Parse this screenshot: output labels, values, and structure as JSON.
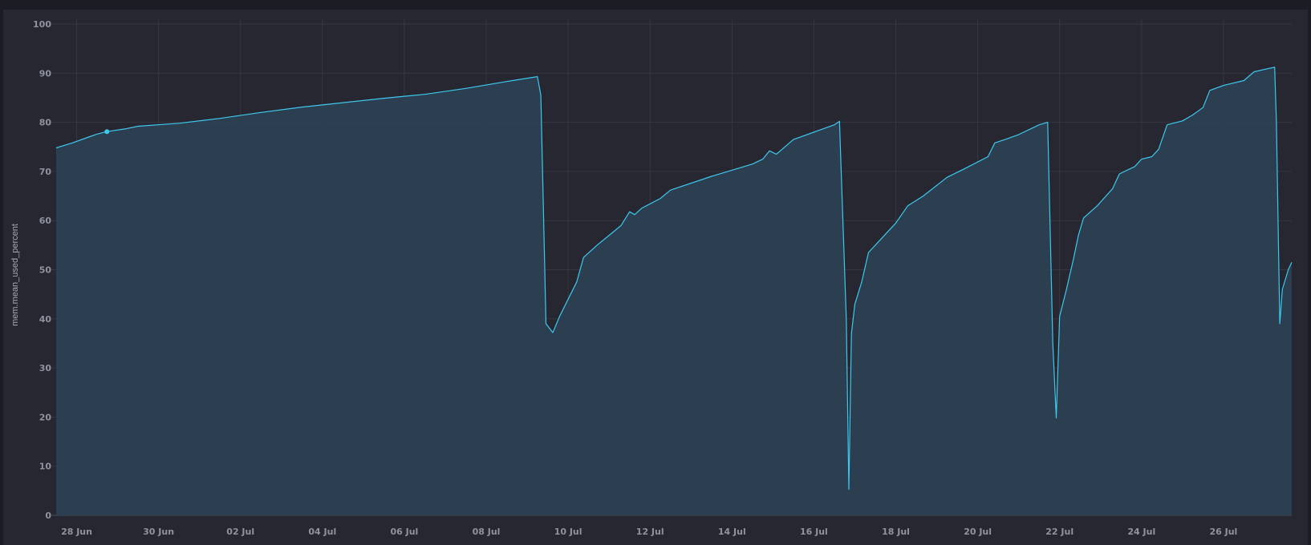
{
  "chart_data": {
    "type": "area",
    "ylabel": "mem.mean_used_percent",
    "ylim": [
      0,
      100
    ],
    "yticks": [
      0,
      10,
      20,
      30,
      40,
      50,
      60,
      70,
      80,
      90,
      100
    ],
    "x_range": [
      "2024-06-27T12:00",
      "2024-07-27T16:00"
    ],
    "xticks": [
      {
        "date": "2024-06-28",
        "label": "28 Jun"
      },
      {
        "date": "2024-06-30",
        "label": "30 Jun"
      },
      {
        "date": "2024-07-02",
        "label": "02 Jul"
      },
      {
        "date": "2024-07-04",
        "label": "04 Jul"
      },
      {
        "date": "2024-07-06",
        "label": "06 Jul"
      },
      {
        "date": "2024-07-08",
        "label": "08 Jul"
      },
      {
        "date": "2024-07-10",
        "label": "10 Jul"
      },
      {
        "date": "2024-07-12",
        "label": "12 Jul"
      },
      {
        "date": "2024-07-14",
        "label": "14 Jul"
      },
      {
        "date": "2024-07-16",
        "label": "16 Jul"
      },
      {
        "date": "2024-07-18",
        "label": "18 Jul"
      },
      {
        "date": "2024-07-20",
        "label": "20 Jul"
      },
      {
        "date": "2024-07-22",
        "label": "22 Jul"
      },
      {
        "date": "2024-07-24",
        "label": "24 Jul"
      },
      {
        "date": "2024-07-26",
        "label": "26 Jul"
      }
    ],
    "grid": true,
    "series": [
      {
        "color": "#3ec8ee",
        "fill": "#2c4255",
        "highlight": {
          "x": "2024-06-28T17:45",
          "y": 78.1
        },
        "points": [
          [
            "2024-06-27T12:00",
            74.8
          ],
          [
            "2024-06-27T21:30",
            75.8
          ],
          [
            "2024-06-28T07:00",
            77.0
          ],
          [
            "2024-06-28T12:00",
            77.6
          ],
          [
            "2024-06-28T17:45",
            78.1
          ],
          [
            "2024-06-29T05:00",
            78.7
          ],
          [
            "2024-06-29T12:00",
            79.2
          ],
          [
            "2024-06-30T12:00",
            79.8
          ],
          [
            "2024-07-01T12:00",
            80.8
          ],
          [
            "2024-07-02T12:00",
            82.0
          ],
          [
            "2024-07-03T12:00",
            83.1
          ],
          [
            "2024-07-04T12:00",
            84.0
          ],
          [
            "2024-07-05T12:00",
            84.9
          ],
          [
            "2024-07-06T12:00",
            85.7
          ],
          [
            "2024-07-07T12:00",
            86.9
          ],
          [
            "2024-07-08T12:00",
            88.3
          ],
          [
            "2024-07-09T06:00",
            89.3
          ],
          [
            "2024-07-09T08:00",
            85.5
          ],
          [
            "2024-07-09T11:00",
            39.0
          ],
          [
            "2024-07-09T15:00",
            37.2
          ],
          [
            "2024-07-09T19:00",
            40.5
          ],
          [
            "2024-07-10T00:00",
            44.0
          ],
          [
            "2024-07-10T05:00",
            47.5
          ],
          [
            "2024-07-10T09:00",
            52.5
          ],
          [
            "2024-07-10T17:00",
            55.0
          ],
          [
            "2024-07-11T00:00",
            57.0
          ],
          [
            "2024-07-11T07:00",
            59.0
          ],
          [
            "2024-07-11T12:00",
            61.8
          ],
          [
            "2024-07-11T15:00",
            61.2
          ],
          [
            "2024-07-11T19:00",
            62.5
          ],
          [
            "2024-07-12T06:00",
            64.5
          ],
          [
            "2024-07-12T12:00",
            66.2
          ],
          [
            "2024-07-13T12:00",
            69.0
          ],
          [
            "2024-07-14T12:00",
            71.5
          ],
          [
            "2024-07-14T18:00",
            72.5
          ],
          [
            "2024-07-14T22:00",
            74.2
          ],
          [
            "2024-07-15T02:00",
            73.5
          ],
          [
            "2024-07-15T12:00",
            76.5
          ],
          [
            "2024-07-16T04:00",
            78.5
          ],
          [
            "2024-07-16T12:00",
            79.5
          ],
          [
            "2024-07-16T15:00",
            80.2
          ],
          [
            "2024-07-16T19:00",
            40.0
          ],
          [
            "2024-07-16T20:30",
            5.3
          ],
          [
            "2024-07-16T22:00",
            37.0
          ],
          [
            "2024-07-17T00:00",
            43.0
          ],
          [
            "2024-07-17T04:00",
            47.5
          ],
          [
            "2024-07-17T08:00",
            53.5
          ],
          [
            "2024-07-17T16:00",
            56.5
          ],
          [
            "2024-07-18T00:00",
            59.5
          ],
          [
            "2024-07-18T07:00",
            63.0
          ],
          [
            "2024-07-18T16:00",
            65.0
          ],
          [
            "2024-07-19T06:00",
            68.8
          ],
          [
            "2024-07-19T16:00",
            70.5
          ],
          [
            "2024-07-20T06:00",
            73.0
          ],
          [
            "2024-07-20T10:00",
            75.8
          ],
          [
            "2024-07-20T16:00",
            76.5
          ],
          [
            "2024-07-21T00:00",
            77.5
          ],
          [
            "2024-07-21T12:00",
            79.5
          ],
          [
            "2024-07-21T17:00",
            80.0
          ],
          [
            "2024-07-21T20:00",
            35.0
          ],
          [
            "2024-07-21T22:00",
            19.8
          ],
          [
            "2024-07-22T00:00",
            40.5
          ],
          [
            "2024-07-22T04:00",
            46.0
          ],
          [
            "2024-07-22T08:00",
            52.0
          ],
          [
            "2024-07-22T11:00",
            57.0
          ],
          [
            "2024-07-22T14:00",
            60.5
          ],
          [
            "2024-07-22T22:00",
            63.0
          ],
          [
            "2024-07-23T07:00",
            66.5
          ],
          [
            "2024-07-23T11:00",
            69.5
          ],
          [
            "2024-07-23T20:00",
            71.0
          ],
          [
            "2024-07-24T00:00",
            72.5
          ],
          [
            "2024-07-24T06:00",
            73.0
          ],
          [
            "2024-07-24T10:00",
            74.5
          ],
          [
            "2024-07-24T15:00",
            79.5
          ],
          [
            "2024-07-25T00:00",
            80.3
          ],
          [
            "2024-07-25T06:00",
            81.5
          ],
          [
            "2024-07-25T12:00",
            83.0
          ],
          [
            "2024-07-25T16:00",
            86.5
          ],
          [
            "2024-07-26T00:00",
            87.5
          ],
          [
            "2024-07-26T12:00",
            88.5
          ],
          [
            "2024-07-26T18:00",
            90.3
          ],
          [
            "2024-07-27T03:00",
            91.0
          ],
          [
            "2024-07-27T06:00",
            91.2
          ],
          [
            "2024-07-27T07:00",
            80.0
          ],
          [
            "2024-07-27T09:00",
            39.0
          ],
          [
            "2024-07-27T10:30",
            46.0
          ],
          [
            "2024-07-27T14:00",
            50.0
          ],
          [
            "2024-07-27T16:00",
            51.5
          ]
        ]
      }
    ]
  }
}
